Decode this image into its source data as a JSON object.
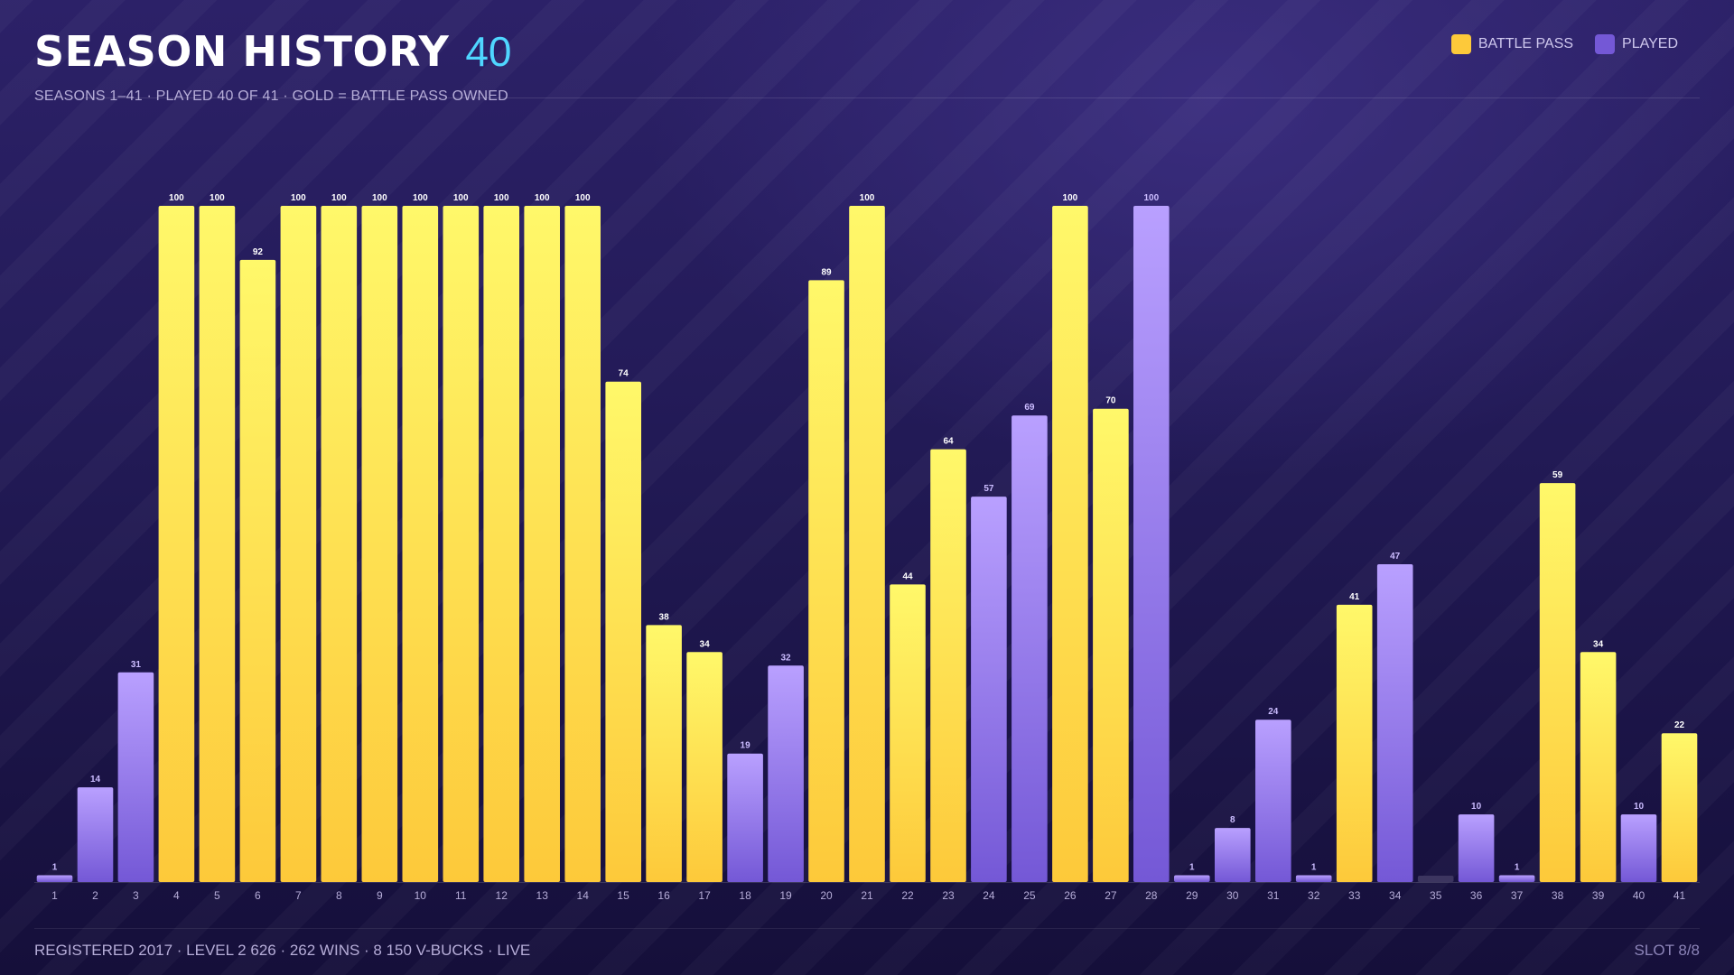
{
  "header": {
    "title": "SEASON HISTORY",
    "count": "40",
    "subtitle": "SEASONS 1–41 · PLAYED 40 OF 41 · GOLD = BATTLE PASS OWNED"
  },
  "legend": {
    "battle_pass": "BATTLE PASS",
    "played": "PLAYED"
  },
  "colors": {
    "battle_pass_top": "#fff86a",
    "battle_pass_bottom": "#fdc93a",
    "played_top": "#b9a0ff",
    "played_bottom": "#7458d6",
    "unplayed": "#3c3560",
    "accent": "#4fd6ff"
  },
  "chart_data": {
    "type": "bar",
    "xlabel": "",
    "ylabel": "",
    "ylim": [
      0,
      100
    ],
    "grid": false,
    "legend_position": "top-right",
    "categories": [
      "1",
      "2",
      "3",
      "4",
      "5",
      "6",
      "7",
      "8",
      "9",
      "10",
      "11",
      "12",
      "13",
      "14",
      "15",
      "16",
      "17",
      "18",
      "19",
      "20",
      "21",
      "22",
      "23",
      "24",
      "25",
      "26",
      "27",
      "28",
      "29",
      "30",
      "31",
      "32",
      "33",
      "34",
      "35",
      "36",
      "37",
      "38",
      "39",
      "40",
      "41"
    ],
    "values": [
      1,
      14,
      31,
      100,
      100,
      92,
      100,
      100,
      100,
      100,
      100,
      100,
      100,
      100,
      74,
      38,
      34,
      19,
      32,
      89,
      100,
      44,
      64,
      57,
      69,
      100,
      70,
      100,
      1,
      8,
      24,
      1,
      41,
      47,
      0,
      10,
      1,
      59,
      34,
      10,
      22
    ],
    "value_labels": [
      "1",
      "14",
      "31",
      "100",
      "100",
      "92",
      "100",
      "100",
      "100",
      "100",
      "100",
      "100",
      "100",
      "100",
      "74",
      "38",
      "34",
      "19",
      "32",
      "89",
      "100",
      "44",
      "64",
      "57",
      "69",
      "100",
      "70",
      "100",
      "1",
      "8",
      "24",
      "1",
      "41",
      "47",
      "",
      "10",
      "1",
      "59",
      "34",
      "10",
      "22"
    ],
    "status": [
      "played",
      "played",
      "played",
      "battle_pass",
      "battle_pass",
      "battle_pass",
      "battle_pass",
      "battle_pass",
      "battle_pass",
      "battle_pass",
      "battle_pass",
      "battle_pass",
      "battle_pass",
      "battle_pass",
      "battle_pass",
      "battle_pass",
      "battle_pass",
      "played",
      "played",
      "battle_pass",
      "battle_pass",
      "battle_pass",
      "battle_pass",
      "played",
      "played",
      "battle_pass",
      "battle_pass",
      "played",
      "played",
      "played",
      "played",
      "played",
      "battle_pass",
      "played",
      "unplayed",
      "played",
      "played",
      "battle_pass",
      "battle_pass",
      "played",
      "battle_pass"
    ]
  },
  "footer": {
    "left": "REGISTERED 2017 · LEVEL 2 626 · 262 WINS · 8 150 V-BUCKS · LIVE",
    "right": "SLOT 8/8"
  }
}
